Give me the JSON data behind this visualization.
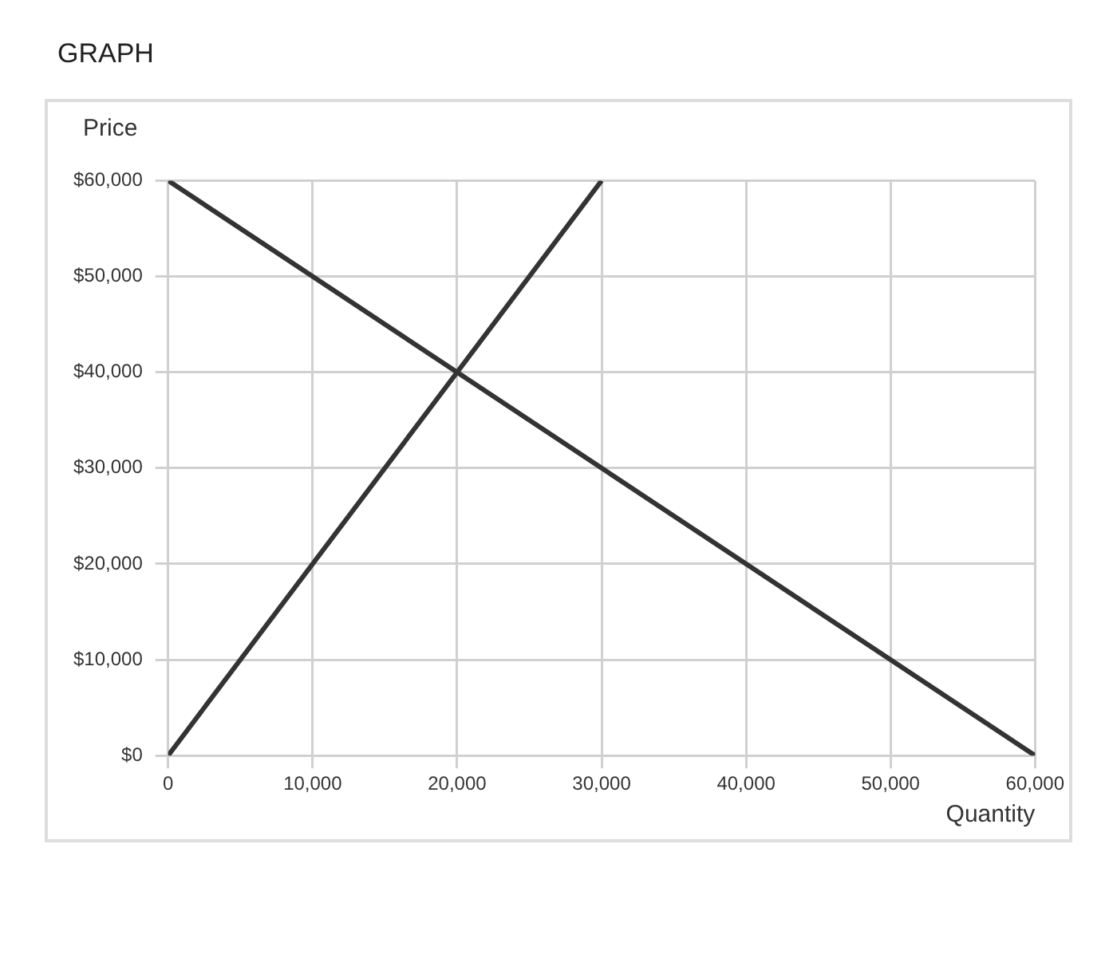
{
  "chart_data": {
    "type": "line",
    "title": "GRAPH",
    "xlabel": "Quantity",
    "ylabel": "Price",
    "xlim": [
      0,
      60000
    ],
    "xticks": [
      {
        "value": 0,
        "label": "0"
      },
      {
        "value": 10000,
        "label": "10,000"
      },
      {
        "value": 20000,
        "label": "20,000"
      },
      {
        "value": 30000,
        "label": "30,000"
      },
      {
        "value": 40000,
        "label": "40,000"
      },
      {
        "value": 50000,
        "label": "50,000"
      },
      {
        "value": 60000,
        "label": "60,000"
      }
    ],
    "ylim": [
      0,
      60000
    ],
    "yticks": [
      {
        "value": 0,
        "label": "$0"
      },
      {
        "value": 10000,
        "label": "$10,000"
      },
      {
        "value": 20000,
        "label": "$20,000"
      },
      {
        "value": 30000,
        "label": "$30,000"
      },
      {
        "value": 40000,
        "label": "$40,000"
      },
      {
        "value": 50000,
        "label": "$50,000"
      },
      {
        "value": 60000,
        "label": "$60,000"
      }
    ],
    "series": [
      {
        "color": "#333333",
        "x": [
          0,
          30000
        ],
        "values": [
          0,
          60000
        ]
      },
      {
        "color": "#333333",
        "x": [
          0,
          60000
        ],
        "values": [
          60000,
          0
        ]
      }
    ],
    "grid": true,
    "legend": false,
    "marker": "none",
    "line_style": "solid"
  }
}
